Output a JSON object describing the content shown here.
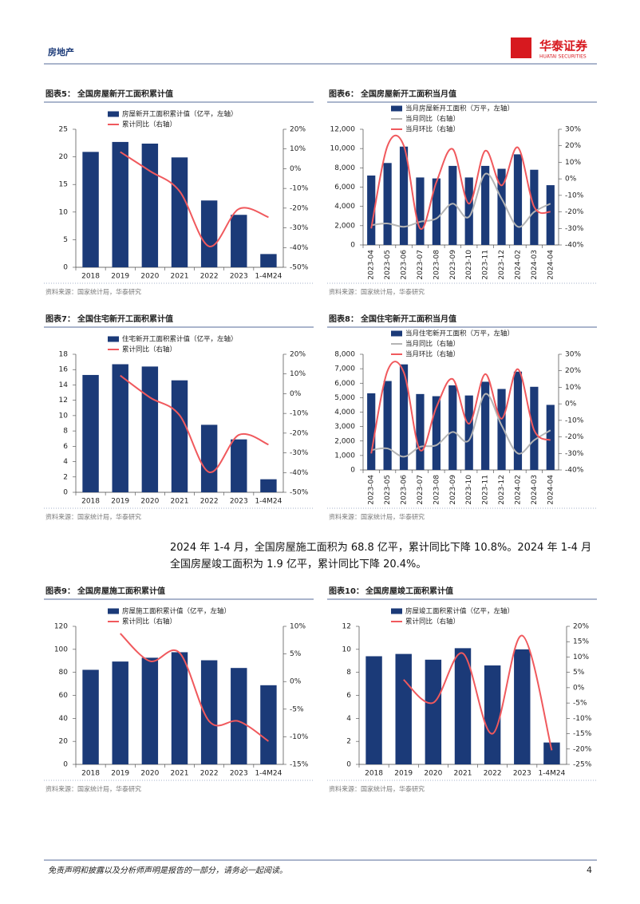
{
  "header": {
    "section": "房地产",
    "logo_cn": "华泰证券",
    "logo_en": "HUATAI SECURITIES"
  },
  "chart_data": [
    {
      "type": "combo",
      "label": "图表5：",
      "title": "全国房屋新开工面积累计值",
      "source": "资料来源：国家统计局，华泰研究",
      "categories": [
        "2018",
        "2019",
        "2020",
        "2021",
        "2022",
        "2023",
        "1-4M24"
      ],
      "series": [
        {
          "name": "房屋新开工面积累计值（亿平，左轴）",
          "type": "bar",
          "color": "#1b3a78",
          "values": [
            20.9,
            22.7,
            22.4,
            19.9,
            12.1,
            9.5,
            2.4
          ]
        },
        {
          "name": "累计同比（右轴）",
          "type": "line",
          "axis": "y2",
          "color": "#f0595d",
          "values": [
            null,
            8.5,
            -1.2,
            -11.4,
            -39.4,
            -20.4,
            -24.6
          ]
        }
      ],
      "ylim": [
        0,
        25
      ],
      "yticks": [
        0,
        5,
        10,
        15,
        20,
        25
      ],
      "y2lim": [
        -50,
        20
      ],
      "y2ticks": [
        {
          "value": -50,
          "label": "-50%"
        },
        {
          "value": -40,
          "label": "-40%"
        },
        {
          "value": -30,
          "label": "-30%"
        },
        {
          "value": -20,
          "label": "-20%"
        },
        {
          "value": -10,
          "label": "-10%"
        },
        {
          "value": 0,
          "label": "0%"
        },
        {
          "value": 10,
          "label": "10%"
        },
        {
          "value": 20,
          "label": "20%"
        }
      ]
    },
    {
      "type": "combo",
      "label": "图表6：",
      "title": "全国房屋新开工面积当月值",
      "source": "资料来源：国家统计局，华泰研究",
      "categories": [
        "2023-04",
        "2023-05",
        "2023-06",
        "2023-07",
        "2023-08",
        "2023-09",
        "2023-10",
        "2023-11",
        "2023-12",
        "2024-02",
        "2024-03",
        "2024-04"
      ],
      "series": [
        {
          "name": "当月房屋新开工面积（万平，左轴）",
          "type": "bar",
          "color": "#1b3a78",
          "values": [
            7200,
            8500,
            10200,
            7000,
            6900,
            8200,
            7000,
            8200,
            7900,
            9400,
            7800,
            6200
          ]
        },
        {
          "name": "当月同比（右轴）",
          "type": "line",
          "axis": "y2",
          "color": "#b4b4b4",
          "values": [
            -28,
            -27,
            -29,
            -26,
            -24,
            -15,
            -23,
            3,
            -12,
            -29,
            -20,
            -15
          ]
        },
        {
          "name": "当月环比（右轴）",
          "type": "line",
          "axis": "y2",
          "color": "#f0595d",
          "values": [
            -30,
            20,
            20,
            -30,
            -2,
            18,
            -15,
            17,
            -4,
            19,
            -17,
            -20
          ]
        }
      ],
      "ylim": [
        0,
        12000
      ],
      "yticks": [
        0,
        {
          "value": 2000,
          "label": "2,000"
        },
        {
          "value": 4000,
          "label": "4,000"
        },
        {
          "value": 6000,
          "label": "6,000"
        },
        {
          "value": 8000,
          "label": "8,000"
        },
        {
          "value": 10000,
          "label": "10,000"
        },
        {
          "value": 12000,
          "label": "12,000"
        }
      ],
      "y2lim": [
        -40,
        30
      ],
      "y2ticks": [
        {
          "value": -40,
          "label": "-40%"
        },
        {
          "value": -30,
          "label": "-30%"
        },
        {
          "value": -20,
          "label": "-20%"
        },
        {
          "value": -10,
          "label": "-10%"
        },
        {
          "value": 0,
          "label": "0%"
        },
        {
          "value": 10,
          "label": "10%"
        },
        {
          "value": 20,
          "label": "20%"
        },
        {
          "value": 30,
          "label": "30%"
        }
      ]
    },
    {
      "type": "combo",
      "label": "图表7：",
      "title": "全国住宅新开工面积累计值",
      "source": "资料来源：国家统计局，华泰研究",
      "categories": [
        "2018",
        "2019",
        "2020",
        "2021",
        "2022",
        "2023",
        "1-4M24"
      ],
      "series": [
        {
          "name": "住宅新开工面积累计值（亿平，左轴）",
          "type": "bar",
          "color": "#1b3a78",
          "values": [
            15.3,
            16.7,
            16.4,
            14.6,
            8.8,
            6.9,
            1.7
          ]
        },
        {
          "name": "累计同比（右轴）",
          "type": "line",
          "axis": "y2",
          "color": "#f0595d",
          "values": [
            null,
            9.2,
            -1.9,
            -10.9,
            -39.8,
            -20.9,
            -25.8
          ]
        }
      ],
      "ylim": [
        0,
        18
      ],
      "yticks": [
        0,
        2,
        4,
        6,
        8,
        10,
        12,
        14,
        16,
        18
      ],
      "y2lim": [
        -50,
        20
      ],
      "y2ticks": [
        {
          "value": -50,
          "label": "-50%"
        },
        {
          "value": -40,
          "label": "-40%"
        },
        {
          "value": -30,
          "label": "-30%"
        },
        {
          "value": -20,
          "label": "-20%"
        },
        {
          "value": -10,
          "label": "-10%"
        },
        {
          "value": 0,
          "label": "0%"
        },
        {
          "value": 10,
          "label": "10%"
        },
        {
          "value": 20,
          "label": "20%"
        }
      ]
    },
    {
      "type": "combo",
      "label": "图表8：",
      "title": "全国住宅新开工面积当月值",
      "source": "资料来源：国家统计局，华泰研究",
      "categories": [
        "2023-04",
        "2023-05",
        "2023-06",
        "2023-07",
        "2023-08",
        "2023-09",
        "2023-10",
        "2023-11",
        "2023-12",
        "2024-02",
        "2024-03",
        "2024-04"
      ],
      "series": [
        {
          "name": "当月住宅新开工面积（万平，左轴）",
          "type": "bar",
          "color": "#1b3a78",
          "values": [
            5300,
            6150,
            7300,
            5250,
            5100,
            5850,
            5150,
            6100,
            5600,
            6800,
            5750,
            4500
          ]
        },
        {
          "name": "当月同比（右轴）",
          "type": "line",
          "axis": "y2",
          "color": "#b4b4b4",
          "values": [
            -28,
            -27,
            -32,
            -26,
            -25,
            -17,
            -22,
            6,
            -13,
            -30,
            -22,
            -16
          ]
        },
        {
          "name": "当月环比（右轴）",
          "type": "line",
          "axis": "y2",
          "color": "#f0595d",
          "values": [
            -30,
            20,
            19,
            -28,
            -2,
            15,
            -12,
            18,
            -9,
            21,
            -16,
            -22
          ]
        }
      ],
      "ylim": [
        0,
        8000
      ],
      "yticks": [
        0,
        {
          "value": 1000,
          "label": "1,000"
        },
        {
          "value": 2000,
          "label": "2,000"
        },
        {
          "value": 3000,
          "label": "3,000"
        },
        {
          "value": 4000,
          "label": "4,000"
        },
        {
          "value": 5000,
          "label": "5,000"
        },
        {
          "value": 6000,
          "label": "6,000"
        },
        {
          "value": 7000,
          "label": "7,000"
        },
        {
          "value": 8000,
          "label": "8,000"
        }
      ],
      "y2lim": [
        -40,
        30
      ],
      "y2ticks": [
        {
          "value": -40,
          "label": "-40%"
        },
        {
          "value": -30,
          "label": "-30%"
        },
        {
          "value": -20,
          "label": "-20%"
        },
        {
          "value": -10,
          "label": "-10%"
        },
        {
          "value": 0,
          "label": "0%"
        },
        {
          "value": 10,
          "label": "10%"
        },
        {
          "value": 20,
          "label": "20%"
        },
        {
          "value": 30,
          "label": "30%"
        }
      ]
    },
    {
      "type": "combo",
      "label": "图表9：",
      "title": "全国房屋施工面积累计值",
      "source": "资料来源：国家统计局，华泰研究",
      "categories": [
        "2018",
        "2019",
        "2020",
        "2021",
        "2022",
        "2023",
        "1-4M24"
      ],
      "series": [
        {
          "name": "房屋施工面积累计值（亿平，左轴）",
          "type": "bar",
          "color": "#1b3a78",
          "values": [
            82.2,
            89.4,
            92.7,
            97.5,
            90.5,
            83.8,
            68.8
          ]
        },
        {
          "name": "累计同比（右轴）",
          "type": "line",
          "axis": "y2",
          "color": "#f0595d",
          "values": [
            null,
            8.7,
            3.7,
            5.2,
            -7.2,
            -7.2,
            -10.8
          ]
        }
      ],
      "ylim": [
        0,
        120
      ],
      "yticks": [
        0,
        20,
        40,
        60,
        80,
        100,
        120
      ],
      "y2lim": [
        -15,
        10
      ],
      "y2ticks": [
        {
          "value": -15,
          "label": "-15%"
        },
        {
          "value": -10,
          "label": "-10%"
        },
        {
          "value": -5,
          "label": "-5%"
        },
        {
          "value": 0,
          "label": "0%"
        },
        {
          "value": 5,
          "label": "5%"
        },
        {
          "value": 10,
          "label": "10%"
        }
      ]
    },
    {
      "type": "combo",
      "label": "图表10：",
      "title": "全国房屋竣工面积累计值",
      "source": "资料来源：国家统计局，华泰研究",
      "categories": [
        "2018",
        "2019",
        "2020",
        "2021",
        "2022",
        "2023",
        "1-4M24"
      ],
      "series": [
        {
          "name": "房屋竣工面积累计值（亿平，左轴）",
          "type": "bar",
          "color": "#1b3a78",
          "values": [
            9.4,
            9.6,
            9.1,
            10.1,
            8.6,
            10.0,
            1.9
          ]
        },
        {
          "name": "累计同比（右轴）",
          "type": "line",
          "axis": "y2",
          "color": "#f0595d",
          "values": [
            null,
            2.6,
            -4.9,
            11.2,
            -15.0,
            17.0,
            -20.4
          ]
        }
      ],
      "ylim": [
        0,
        12
      ],
      "yticks": [
        0,
        2,
        4,
        6,
        8,
        10,
        12
      ],
      "y2lim": [
        -25,
        20
      ],
      "y2ticks": [
        {
          "value": -25,
          "label": "-25%"
        },
        {
          "value": -20,
          "label": "-20%"
        },
        {
          "value": -15,
          "label": "-15%"
        },
        {
          "value": -10,
          "label": "-10%"
        },
        {
          "value": -5,
          "label": "-5%"
        },
        {
          "value": 0,
          "label": "0%"
        },
        {
          "value": 5,
          "label": "5%"
        },
        {
          "value": 10,
          "label": "10%"
        },
        {
          "value": 15,
          "label": "15%"
        },
        {
          "value": 20,
          "label": "20%"
        }
      ]
    }
  ],
  "body_text": "2024 年 1-4 月，全国房屋施工面积为 68.8 亿平，累计同比下降 10.8%。2024 年 1-4 月全国房屋竣工面积为 1.9 亿平，累计同比下降 20.4%。",
  "footer": {
    "disclaimer": "免责声明和披露以及分析师声明是报告的一部分，请务必一起阅读。",
    "page": 4
  }
}
